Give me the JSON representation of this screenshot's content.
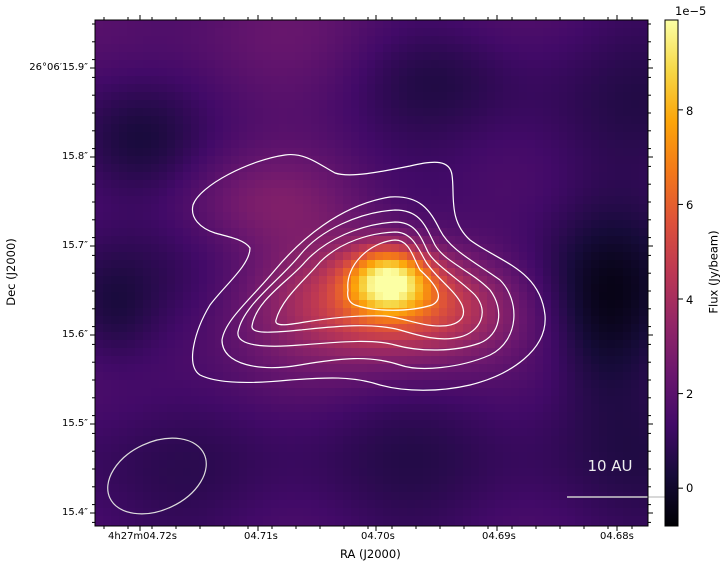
{
  "chart_data": {
    "type": "heatmap",
    "colormap": "inferno",
    "xlabel": "RA (J2000)",
    "ylabel": "Dec (J2000)",
    "x_ticks": [
      "4h27m04.72s",
      "04.71s",
      "04.70s",
      "04.69s",
      "04.68s"
    ],
    "y_ticks": [
      "26°06′15.9″",
      "15.8″",
      "15.7″",
      "15.6″",
      "15.5″",
      "15.4″"
    ],
    "colorbar": {
      "label": "Flux (Jy/beam)",
      "offset_text": "1e−5",
      "ticks": [
        "0",
        "2",
        "4",
        "6",
        "8"
      ],
      "range": [
        -0.8,
        9.9
      ]
    },
    "contours": {
      "color": "#ffffff",
      "count": 6
    },
    "peak_flux": 9.9,
    "scale_bar": {
      "label": "10 AU"
    },
    "beam": {
      "shape": "ellipse",
      "color": "#ffffff"
    }
  }
}
